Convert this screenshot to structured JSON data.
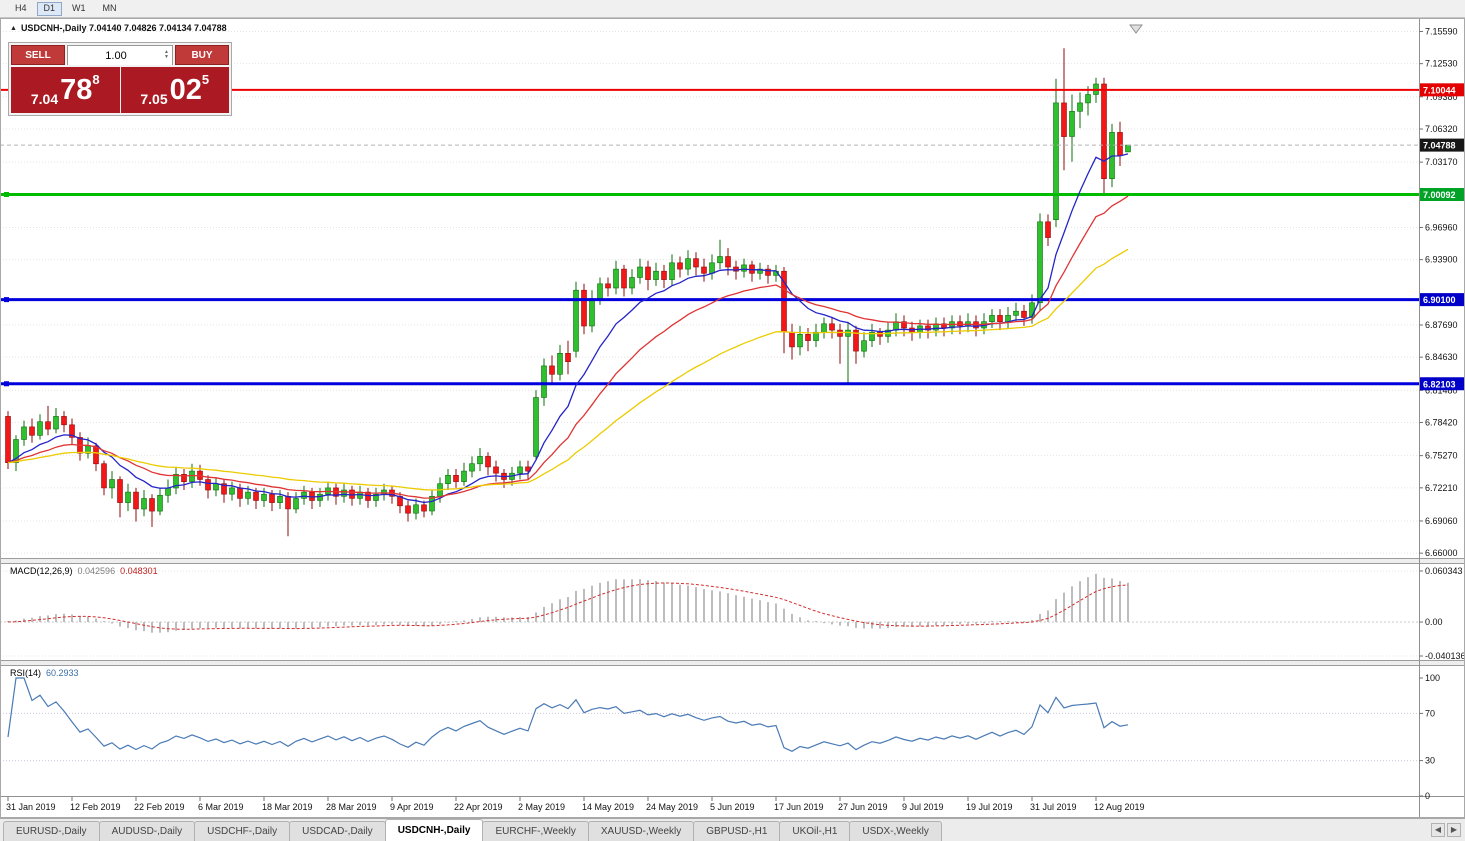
{
  "toolbar": {
    "timeframes": [
      {
        "label": "H4",
        "active": false
      },
      {
        "label": "D1",
        "active": true
      },
      {
        "label": "W1",
        "active": false
      },
      {
        "label": "MN",
        "active": false
      }
    ]
  },
  "header": {
    "symbol_line": "USDCNH-,Daily 7.04140 7.04826 7.04134 7.04788"
  },
  "trade_panel": {
    "sell_label": "SELL",
    "buy_label": "BUY",
    "volume": "1.00",
    "sell_price_main": "7.04",
    "sell_price_pips": "78",
    "sell_price_pt": "8",
    "buy_price_main": "7.05",
    "buy_price_pips": "02",
    "buy_price_pt": "5"
  },
  "indicators": {
    "macd": {
      "name": "MACD(12,26,9)",
      "value_main": "0.042596",
      "value_signal": "0.048301",
      "axis": [
        "0.060343",
        "0.00",
        "-0.040136"
      ]
    },
    "rsi": {
      "name": "RSI(14)",
      "value": "60.2933",
      "axis": [
        "100",
        "70",
        "30",
        "0"
      ],
      "period": 14
    }
  },
  "price_axis": {
    "ticks": [
      "7.15590",
      "7.12530",
      "7.09380",
      "7.06320",
      "7.03170",
      "6.96960",
      "6.93900",
      "6.87690",
      "6.84630",
      "6.81480",
      "6.78420",
      "6.75270",
      "6.72210",
      "6.69060",
      "6.66000"
    ],
    "badges": [
      {
        "text": "7.10044",
        "color": "#e40000"
      },
      {
        "text": "7.04788",
        "color": "#161616"
      },
      {
        "text": "7.00092",
        "color": "#00a326"
      },
      {
        "text": "6.90100",
        "color": "#0000c8"
      },
      {
        "text": "6.82103",
        "color": "#0000c8"
      }
    ]
  },
  "chart_data": {
    "type": "candlestick",
    "symbol": "USDCNH-",
    "timeframe": "Daily",
    "current_ohlc": {
      "open": "7.04140",
      "high": "7.04826",
      "low": "7.04134",
      "close": "7.04788"
    },
    "y_range": [
      6.66,
      7.1559
    ],
    "current_price": 7.04788,
    "hlines": [
      {
        "price": 7.10044,
        "color": "#ee0000",
        "width": 2,
        "handles": false
      },
      {
        "price": 7.00092,
        "color": "#00bb00",
        "width": 3,
        "handles": true
      },
      {
        "price": 6.901,
        "color": "#0000dd",
        "width": 3,
        "handles": true
      },
      {
        "price": 6.82103,
        "color": "#0000dd",
        "width": 3,
        "handles": true
      }
    ],
    "ma": [
      {
        "period": 10,
        "color": "#2424c8"
      },
      {
        "period": 21,
        "color": "#e03434"
      },
      {
        "period": 45,
        "color": "#eccb00"
      }
    ],
    "colors": {
      "up": "#2fbf2f",
      "up_border": "#0f6e0f",
      "down": "#f31818",
      "down_border": "#8e0e0e",
      "macd_hist": "#bdbdbd",
      "macd_signal": "#d32f2f",
      "rsi_line": "#4a7ab5"
    },
    "x_labels": [
      {
        "i": 0,
        "label": "31 Jan 2019"
      },
      {
        "i": 8,
        "label": "12 Feb 2019"
      },
      {
        "i": 16,
        "label": "22 Feb 2019"
      },
      {
        "i": 24,
        "label": "6 Mar 2019"
      },
      {
        "i": 32,
        "label": "18 Mar 2019"
      },
      {
        "i": 40,
        "label": "28 Mar 2019"
      },
      {
        "i": 48,
        "label": "9 Apr 2019"
      },
      {
        "i": 56,
        "label": "22 Apr 2019"
      },
      {
        "i": 64,
        "label": "2 May 2019"
      },
      {
        "i": 72,
        "label": "14 May 2019"
      },
      {
        "i": 80,
        "label": "24 May 2019"
      },
      {
        "i": 88,
        "label": "5 Jun 2019"
      },
      {
        "i": 96,
        "label": "17 Jun 2019"
      },
      {
        "i": 104,
        "label": "27 Jun 2019"
      },
      {
        "i": 112,
        "label": "9 Jul 2019"
      },
      {
        "i": 120,
        "label": "19 Jul 2019"
      },
      {
        "i": 128,
        "label": "31 Jul 2019"
      },
      {
        "i": 136,
        "label": "12 Aug 2019"
      }
    ],
    "ohlc": [
      [
        6.79,
        6.795,
        6.74,
        6.746
      ],
      [
        6.746,
        6.772,
        6.738,
        6.768
      ],
      [
        6.768,
        6.786,
        6.762,
        6.78
      ],
      [
        6.78,
        6.788,
        6.765,
        6.772
      ],
      [
        6.772,
        6.792,
        6.768,
        6.785
      ],
      [
        6.785,
        6.8,
        6.772,
        6.778
      ],
      [
        6.778,
        6.798,
        6.774,
        6.79
      ],
      [
        6.79,
        6.795,
        6.775,
        6.782
      ],
      [
        6.782,
        6.788,
        6.763,
        6.77
      ],
      [
        6.77,
        6.775,
        6.748,
        6.755
      ],
      [
        6.755,
        6.77,
        6.75,
        6.762
      ],
      [
        6.762,
        6.765,
        6.738,
        6.745
      ],
      [
        6.745,
        6.748,
        6.715,
        6.722
      ],
      [
        6.722,
        6.738,
        6.712,
        6.73
      ],
      [
        6.73,
        6.733,
        6.694,
        6.708
      ],
      [
        6.708,
        6.726,
        6.7,
        6.718
      ],
      [
        6.718,
        6.722,
        6.69,
        6.702
      ],
      [
        6.702,
        6.72,
        6.695,
        6.712
      ],
      [
        6.712,
        6.716,
        6.685,
        6.7
      ],
      [
        6.7,
        6.722,
        6.696,
        6.715
      ],
      [
        6.715,
        6.73,
        6.708,
        6.722
      ],
      [
        6.722,
        6.742,
        6.716,
        6.735
      ],
      [
        6.735,
        6.74,
        6.72,
        6.728
      ],
      [
        6.728,
        6.745,
        6.722,
        6.738
      ],
      [
        6.738,
        6.744,
        6.724,
        6.73
      ],
      [
        6.73,
        6.734,
        6.712,
        6.72
      ],
      [
        6.72,
        6.732,
        6.714,
        6.726
      ],
      [
        6.726,
        6.73,
        6.708,
        6.716
      ],
      [
        6.716,
        6.728,
        6.71,
        6.722
      ],
      [
        6.722,
        6.726,
        6.704,
        6.712
      ],
      [
        6.712,
        6.724,
        6.706,
        6.718
      ],
      [
        6.718,
        6.722,
        6.702,
        6.71
      ],
      [
        6.71,
        6.722,
        6.704,
        6.716
      ],
      [
        6.716,
        6.72,
        6.7,
        6.708
      ],
      [
        6.708,
        6.72,
        6.702,
        6.714
      ],
      [
        6.714,
        6.718,
        6.676,
        6.702
      ],
      [
        6.702,
        6.718,
        6.698,
        6.712
      ],
      [
        6.712,
        6.724,
        6.706,
        6.718
      ],
      [
        6.718,
        6.722,
        6.702,
        6.71
      ],
      [
        6.71,
        6.722,
        6.704,
        6.716
      ],
      [
        6.716,
        6.728,
        6.71,
        6.722
      ],
      [
        6.722,
        6.726,
        6.706,
        6.714
      ],
      [
        6.714,
        6.726,
        6.708,
        6.72
      ],
      [
        6.72,
        6.724,
        6.705,
        6.712
      ],
      [
        6.712,
        6.724,
        6.706,
        6.718
      ],
      [
        6.718,
        6.722,
        6.703,
        6.71
      ],
      [
        6.71,
        6.722,
        6.704,
        6.716
      ],
      [
        6.716,
        6.726,
        6.71,
        6.72
      ],
      [
        6.72,
        6.724,
        6.707,
        6.714
      ],
      [
        6.714,
        6.718,
        6.698,
        6.705
      ],
      [
        6.705,
        6.71,
        6.69,
        6.698
      ],
      [
        6.698,
        6.712,
        6.692,
        6.706
      ],
      [
        6.706,
        6.71,
        6.694,
        6.7
      ],
      [
        6.7,
        6.72,
        6.696,
        6.714
      ],
      [
        6.714,
        6.732,
        6.708,
        6.726
      ],
      [
        6.726,
        6.74,
        6.72,
        6.734
      ],
      [
        6.734,
        6.74,
        6.722,
        6.728
      ],
      [
        6.728,
        6.746,
        6.724,
        6.738
      ],
      [
        6.738,
        6.752,
        6.732,
        6.745
      ],
      [
        6.745,
        6.76,
        6.738,
        6.752
      ],
      [
        6.752,
        6.756,
        6.734,
        6.742
      ],
      [
        6.742,
        6.748,
        6.728,
        6.736
      ],
      [
        6.736,
        6.74,
        6.722,
        6.73
      ],
      [
        6.73,
        6.742,
        6.724,
        6.736
      ],
      [
        6.736,
        6.748,
        6.73,
        6.742
      ],
      [
        6.742,
        6.748,
        6.73,
        6.738
      ],
      [
        6.752,
        6.815,
        6.748,
        6.808
      ],
      [
        6.808,
        6.845,
        6.8,
        6.838
      ],
      [
        6.838,
        6.848,
        6.82,
        6.83
      ],
      [
        6.83,
        6.858,
        6.824,
        6.85
      ],
      [
        6.85,
        6.862,
        6.83,
        6.842
      ],
      [
        6.852,
        6.918,
        6.846,
        6.91
      ],
      [
        6.91,
        6.916,
        6.868,
        6.876
      ],
      [
        6.876,
        6.91,
        6.87,
        6.902
      ],
      [
        6.902,
        6.922,
        6.896,
        6.916
      ],
      [
        6.916,
        6.922,
        6.904,
        6.912
      ],
      [
        6.912,
        6.938,
        6.906,
        6.93
      ],
      [
        6.93,
        6.934,
        6.904,
        6.912
      ],
      [
        6.912,
        6.93,
        6.906,
        6.922
      ],
      [
        6.922,
        6.94,
        6.916,
        6.932
      ],
      [
        6.932,
        6.938,
        6.91,
        6.92
      ],
      [
        6.92,
        6.936,
        6.914,
        6.928
      ],
      [
        6.928,
        6.934,
        6.912,
        6.92
      ],
      [
        6.92,
        6.944,
        6.914,
        6.936
      ],
      [
        6.936,
        6.942,
        6.922,
        6.93
      ],
      [
        6.93,
        6.948,
        6.924,
        6.94
      ],
      [
        6.94,
        6.946,
        6.924,
        6.932
      ],
      [
        6.932,
        6.94,
        6.918,
        6.926
      ],
      [
        6.926,
        6.944,
        6.92,
        6.936
      ],
      [
        6.936,
        6.958,
        6.93,
        6.942
      ],
      [
        6.942,
        6.95,
        6.924,
        6.932
      ],
      [
        6.932,
        6.938,
        6.92,
        6.928
      ],
      [
        6.928,
        6.94,
        6.922,
        6.934
      ],
      [
        6.934,
        6.938,
        6.918,
        6.926
      ],
      [
        6.926,
        6.936,
        6.92,
        6.93
      ],
      [
        6.93,
        6.934,
        6.916,
        6.924
      ],
      [
        6.924,
        6.934,
        6.918,
        6.928
      ],
      [
        6.928,
        6.932,
        6.85,
        6.87
      ],
      [
        6.87,
        6.878,
        6.844,
        6.856
      ],
      [
        6.856,
        6.876,
        6.848,
        6.868
      ],
      [
        6.868,
        6.874,
        6.852,
        6.862
      ],
      [
        6.862,
        6.878,
        6.856,
        6.87
      ],
      [
        6.87,
        6.884,
        6.864,
        6.878
      ],
      [
        6.878,
        6.884,
        6.864,
        6.872
      ],
      [
        6.872,
        6.878,
        6.84,
        6.866
      ],
      [
        6.866,
        6.88,
        6.821,
        6.872
      ],
      [
        6.872,
        6.876,
        6.84,
        6.852
      ],
      [
        6.852,
        6.87,
        6.846,
        6.862
      ],
      [
        6.862,
        6.878,
        6.856,
        6.87
      ],
      [
        6.87,
        6.874,
        6.858,
        6.866
      ],
      [
        6.866,
        6.88,
        6.86,
        6.872
      ],
      [
        6.872,
        6.888,
        6.866,
        6.88
      ],
      [
        6.88,
        6.886,
        6.866,
        6.874
      ],
      [
        6.874,
        6.88,
        6.862,
        6.87
      ],
      [
        6.87,
        6.882,
        6.864,
        6.876
      ],
      [
        6.876,
        6.882,
        6.864,
        6.872
      ],
      [
        6.872,
        6.884,
        6.866,
        6.878
      ],
      [
        6.878,
        6.884,
        6.866,
        6.874
      ],
      [
        6.874,
        6.886,
        6.868,
        6.88
      ],
      [
        6.88,
        6.886,
        6.868,
        6.876
      ],
      [
        6.876,
        6.888,
        6.87,
        6.88
      ],
      [
        6.88,
        6.886,
        6.866,
        6.874
      ],
      [
        6.874,
        6.888,
        6.868,
        6.88
      ],
      [
        6.88,
        6.892,
        6.874,
        6.886
      ],
      [
        6.886,
        6.892,
        6.872,
        6.88
      ],
      [
        6.88,
        6.894,
        6.874,
        6.886
      ],
      [
        6.886,
        6.898,
        6.88,
        6.89
      ],
      [
        6.89,
        6.896,
        6.876,
        6.884
      ],
      [
        6.884,
        6.906,
        6.878,
        6.898
      ],
      [
        6.898,
        6.983,
        6.89,
        6.975
      ],
      [
        6.975,
        6.982,
        6.952,
        6.96
      ],
      [
        6.977,
        7.111,
        6.97,
        7.088
      ],
      [
        7.088,
        7.14,
        7.024,
        7.056
      ],
      [
        7.056,
        7.096,
        7.032,
        7.08
      ],
      [
        7.08,
        7.098,
        7.064,
        7.088
      ],
      [
        7.088,
        7.104,
        7.076,
        7.096
      ],
      [
        7.096,
        7.112,
        7.088,
        7.106
      ],
      [
        7.106,
        7.112,
        7.002,
        7.016
      ],
      [
        7.016,
        7.068,
        7.008,
        7.06
      ],
      [
        7.06,
        7.07,
        7.028,
        7.038
      ],
      [
        7.0414,
        7.0483,
        7.0413,
        7.0479
      ]
    ]
  },
  "tabs": {
    "items": [
      "EURUSD-,Daily",
      "AUDUSD-,Daily",
      "USDCHF-,Daily",
      "USDCAD-,Daily",
      "USDCNH-,Daily",
      "EURCHF-,Weekly",
      "XAUUSD-,Weekly",
      "GBPUSD-,H1",
      "UKOil-,H1",
      "USDX-,Weekly"
    ],
    "active_index": 4
  }
}
